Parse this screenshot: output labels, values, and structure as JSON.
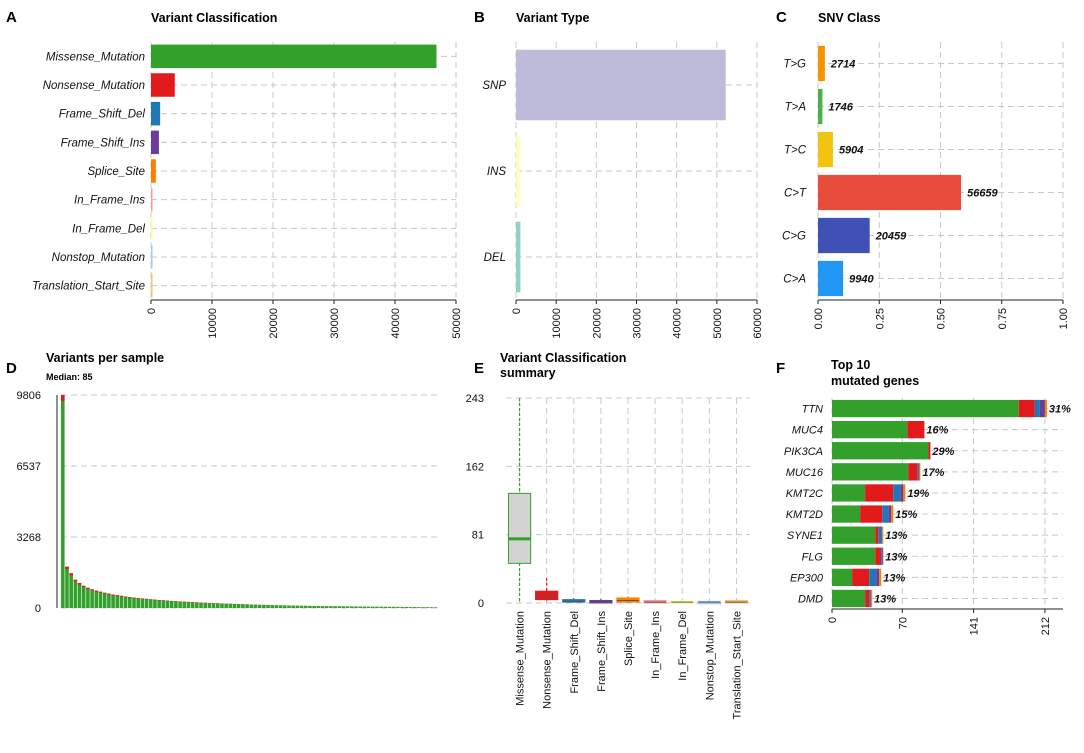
{
  "chart_data": [
    {
      "id": "A",
      "panel_letter": "A",
      "type": "bar",
      "orientation": "horizontal",
      "title": "Variant Classification",
      "categories": [
        "Missense_Mutation",
        "Nonsense_Mutation",
        "Frame_Shift_Del",
        "Frame_Shift_Ins",
        "Splice_Site",
        "In_Frame_Ins",
        "In_Frame_Del",
        "Nonstop_Mutation",
        "Translation_Start_Site"
      ],
      "values": [
        46800,
        3900,
        1500,
        1300,
        800,
        200,
        150,
        60,
        30
      ],
      "colors": [
        "#33A02C",
        "#E31A1C",
        "#1F78B4",
        "#6A3D9A",
        "#FF7F00",
        "#FB9A99",
        "#FFFF99",
        "#A6CEE3",
        "#FDBF6F"
      ],
      "xlim": [
        0,
        50000
      ],
      "xticks": [
        "0",
        "10000",
        "20000",
        "30000",
        "40000",
        "50000"
      ]
    },
    {
      "id": "B",
      "panel_letter": "B",
      "type": "bar",
      "orientation": "horizontal",
      "title": "Variant Type",
      "categories": [
        "SNP",
        "INS",
        "DEL"
      ],
      "values": [
        52200,
        900,
        1100
      ],
      "colors": [
        "#BEBADA",
        "#FFFFB3",
        "#8DD3C7"
      ],
      "xlim": [
        0,
        60000
      ],
      "xticks": [
        "0",
        "10000",
        "20000",
        "30000",
        "40000",
        "50000",
        "60000"
      ]
    },
    {
      "id": "C",
      "panel_letter": "C",
      "type": "bar",
      "orientation": "horizontal",
      "title": "SNV Class",
      "categories": [
        "T>G",
        "T>A",
        "T>C",
        "C>T",
        "C>G",
        "C>A"
      ],
      "values": [
        0.028,
        0.018,
        0.061,
        0.584,
        0.211,
        0.1025
      ],
      "data_labels": [
        "2714",
        "1746",
        "5904",
        "56659",
        "20459",
        "9940"
      ],
      "colors": [
        "#F29403",
        "#4DAF4A",
        "#F1C40F",
        "#E74C3C",
        "#3F51B5",
        "#2196F3"
      ],
      "xlim": [
        0,
        1
      ],
      "xticks": [
        "0.00",
        "0.25",
        "0.50",
        "0.75",
        "1.00"
      ]
    },
    {
      "id": "D",
      "panel_letter": "D",
      "type": "bar",
      "title": "Variants per sample",
      "subtitle": "Median: 85",
      "ylim": [
        0,
        9806
      ],
      "yticks": [
        "0",
        "3268",
        "6537",
        "9806"
      ],
      "values": [
        9806,
        1900,
        1600,
        1300,
        1150,
        1020,
        930,
        860,
        800,
        750,
        700,
        660,
        620,
        590,
        560,
        530,
        500,
        480,
        460,
        440,
        420,
        400,
        385,
        370,
        355,
        340,
        325,
        312,
        300,
        290,
        280,
        270,
        260,
        250,
        240,
        232,
        224,
        216,
        208,
        200,
        193,
        186,
        179,
        172,
        166,
        160,
        154,
        148,
        142,
        137,
        132,
        127,
        122,
        118,
        114,
        110,
        106,
        102,
        98,
        95,
        92,
        89,
        86,
        84,
        82,
        80,
        78,
        76,
        74,
        72,
        70,
        68,
        66,
        64,
        62,
        60,
        58,
        56,
        54,
        52,
        50,
        48,
        46,
        44,
        42,
        40,
        38,
        36,
        34,
        32
      ]
    },
    {
      "id": "E",
      "panel_letter": "E",
      "type": "boxplot",
      "title": "Variant Classification",
      "title_line2": "summary",
      "ylim": [
        0,
        243
      ],
      "yticks": [
        "0",
        "81",
        "162",
        "243"
      ],
      "categories": [
        "Missense_Mutation",
        "Nonsense_Mutation",
        "Frame_Shift_Del",
        "Frame_Shift_Ins",
        "Splice_Site",
        "In_Frame_Ins",
        "In_Frame_Del",
        "Nonstop_Mutation",
        "Translation_Start_Site"
      ],
      "colors": [
        "#33A02C",
        "#E31A1C",
        "#1F78B4",
        "#6A3D9A",
        "#FF7F00",
        "#FB9A99",
        "#FFFF99",
        "#A6CEE3",
        "#FDBF6F"
      ],
      "boxes": [
        {
          "min": 0,
          "q1": 47,
          "median": 76,
          "q3": 130,
          "max": 243
        },
        {
          "min": 0,
          "q1": 4,
          "median": 8,
          "q3": 14,
          "max": 30
        },
        {
          "min": 0,
          "q1": 1,
          "median": 2,
          "q3": 4,
          "max": 6
        },
        {
          "min": 0,
          "q1": 1,
          "median": 2,
          "q3": 3,
          "max": 5
        },
        {
          "min": 0,
          "q1": 1,
          "median": 3,
          "q3": 6,
          "max": 8
        },
        {
          "min": 0,
          "q1": 0,
          "median": 1,
          "q3": 3,
          "max": 4
        },
        {
          "min": 0,
          "q1": 0,
          "median": 1,
          "q3": 2,
          "max": 3
        },
        {
          "min": 0,
          "q1": 0,
          "median": 1,
          "q3": 2,
          "max": 3
        },
        {
          "min": 0,
          "q1": 0,
          "median": 1,
          "q3": 3,
          "max": 4
        }
      ]
    },
    {
      "id": "F",
      "panel_letter": "F",
      "type": "bar",
      "orientation": "horizontal",
      "stacked": true,
      "title": "Top 10",
      "title_line2": "mutated genes",
      "xlim": [
        0,
        230
      ],
      "xticks": [
        "0",
        "70",
        "141",
        "212"
      ],
      "categories": [
        "TTN",
        "MUC4",
        "PIK3CA",
        "MUC16",
        "KMT2C",
        "KMT2D",
        "SYNE1",
        "FLG",
        "EP300",
        "DMD"
      ],
      "percent_labels": [
        "31%",
        "16%",
        "29%",
        "17%",
        "19%",
        "15%",
        "13%",
        "13%",
        "13%",
        "13%"
      ],
      "series": [
        {
          "name": "Missense_Mutation",
          "color": "#33A02C",
          "values": [
            186,
            75,
            96,
            76,
            33,
            28,
            43,
            43,
            20,
            33
          ]
        },
        {
          "name": "Nonsense_Mutation",
          "color": "#E31A1C",
          "values": [
            16,
            17,
            2,
            9,
            28,
            22,
            3,
            6,
            17,
            4
          ]
        },
        {
          "name": "Frame_Shift_Del",
          "color": "#1F78B4",
          "values": [
            5,
            0,
            0,
            1,
            7,
            6,
            3,
            1,
            7,
            1
          ]
        },
        {
          "name": "Frame_Shift_Ins",
          "color": "#6A3D9A",
          "values": [
            5,
            0,
            0,
            1,
            3,
            3,
            1,
            1,
            3,
            1
          ]
        },
        {
          "name": "Splice_Site",
          "color": "#FF7F00",
          "values": [
            2,
            0,
            0,
            1,
            2,
            2,
            1,
            0,
            2,
            1
          ]
        }
      ]
    }
  ]
}
